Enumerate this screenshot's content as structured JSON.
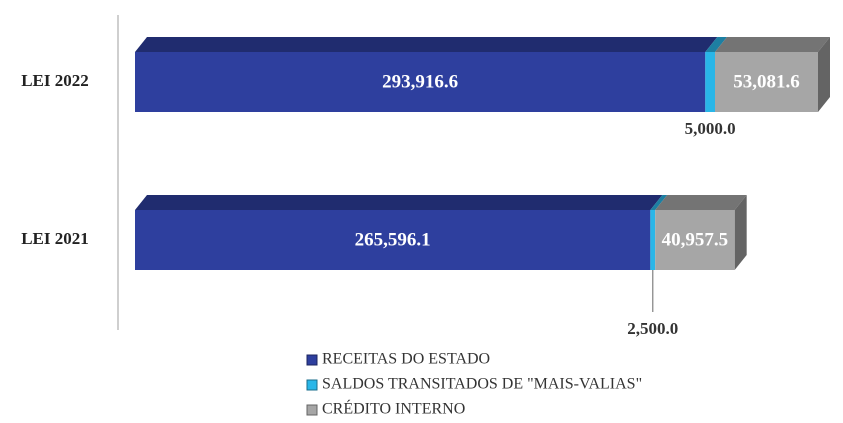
{
  "chart_data": {
    "type": "stacked-bar-horizontal",
    "categories": [
      "LEI 2022",
      "LEI 2021"
    ],
    "series": [
      {
        "name": "RECEITAS DO ESTADO",
        "color": "#2e3f9e",
        "values": [
          293916.6,
          265596.1
        ],
        "value_labels": [
          "293,916.6",
          "265,596.1"
        ]
      },
      {
        "name": "SALDOS TRANSITADOS DE \"MAIS-VALIAS\"",
        "color": "#29b6e8",
        "values": [
          5000.0,
          2500.0
        ],
        "value_labels": [
          "5,000.0",
          "2,500.0"
        ]
      },
      {
        "name": "CRÉDITO INTERNO",
        "color": "#a6a6a6",
        "values": [
          53081.6,
          40957.5
        ],
        "value_labels": [
          "53,081.6",
          "40,957.5"
        ]
      }
    ]
  }
}
